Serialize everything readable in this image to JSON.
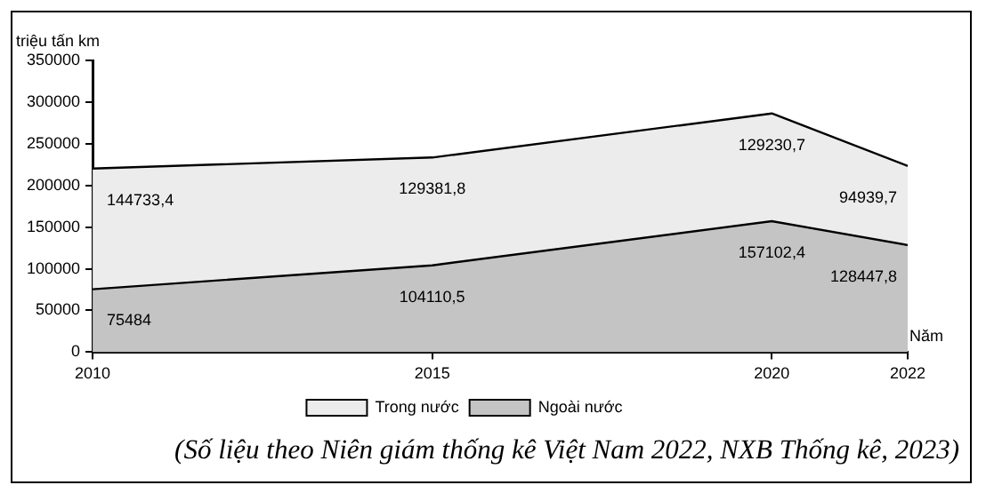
{
  "chart_data": {
    "type": "area",
    "stacked": true,
    "ylabel": "triệu tấn km",
    "xlabel": "Năm",
    "x": [
      2010,
      2015,
      2020,
      2022
    ],
    "xlim": [
      2010,
      2022
    ],
    "xticks": [
      2010,
      2015,
      2020,
      2022
    ],
    "ylim": [
      0,
      350000
    ],
    "yticks": [
      0,
      50000,
      100000,
      150000,
      200000,
      250000,
      300000,
      350000
    ],
    "grid": false,
    "legend": "bottom",
    "series": [
      {
        "name": "Ngoài nước",
        "color": "#c4c4c4",
        "values": [
          75484,
          104110.5,
          157102.4,
          128447.8
        ],
        "value_labels": [
          "75484",
          "104110,5",
          "157102,4",
          "128447,8"
        ]
      },
      {
        "name": "Trong nước",
        "color": "#ececec",
        "values": [
          144733.4,
          129381.8,
          129230.7,
          94939.7
        ],
        "value_labels": [
          "144733,4",
          "129381,8",
          "129230,7",
          "94939,7"
        ]
      }
    ],
    "annotations": [
      "(Số liệu theo Niên giám thống kê Việt Nam 2022, NXB Thống kê, 2023)"
    ]
  }
}
